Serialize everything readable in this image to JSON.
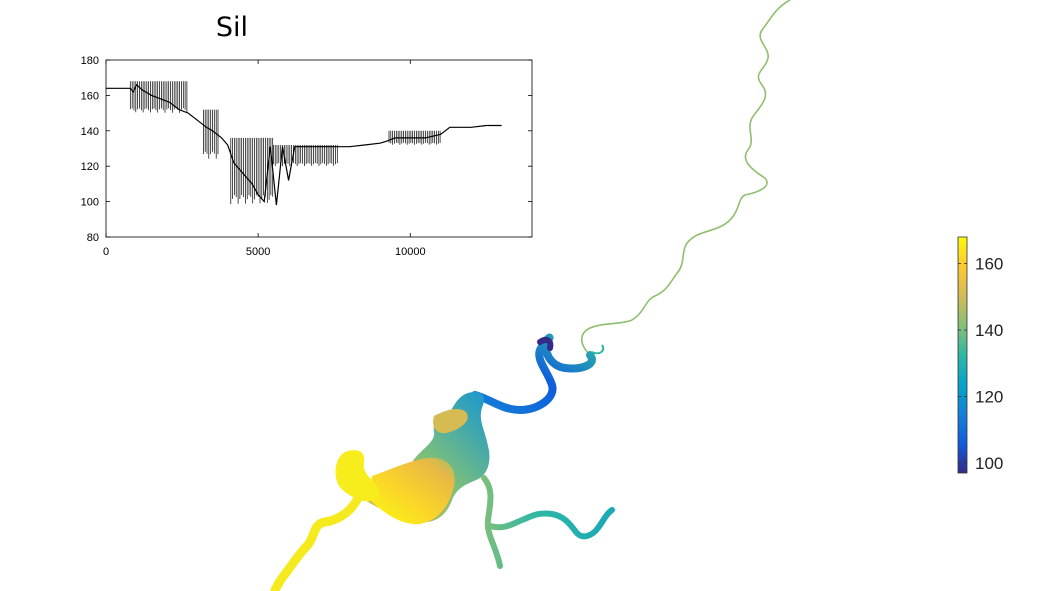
{
  "title": "Sil",
  "colors": {
    "profile_line": "#000000",
    "axes": "#000000",
    "colormap": [
      "#352a87",
      "#0f5cdd",
      "#1481d6",
      "#06a4ca",
      "#2eb7a4",
      "#87bf77",
      "#d1bb59",
      "#fec832",
      "#f9fb0e"
    ]
  },
  "chart_data": [
    {
      "type": "line",
      "title": "Sil",
      "xlabel": "",
      "ylabel": "",
      "xlim": [
        0,
        14000
      ],
      "ylim": [
        80,
        180
      ],
      "x_ticks": [
        0,
        5000,
        10000
      ],
      "x_tick_labels": [
        "0",
        "5000",
        "10000"
      ],
      "y_ticks": [
        80,
        100,
        120,
        140,
        160,
        180
      ],
      "y_tick_labels": [
        "80",
        "100",
        "120",
        "140",
        "160",
        "180"
      ],
      "grid": false,
      "series": [
        {
          "x": [
            0,
            400,
            800,
            900,
            1000,
            1200,
            1500,
            1800,
            2100,
            2400,
            2700,
            3000,
            3300,
            3500,
            3800,
            4000,
            4200,
            4500,
            4800,
            5000,
            5200,
            5400,
            5600,
            5800,
            6000,
            6200,
            6500,
            7000,
            7500,
            8000,
            8500,
            9000,
            9200,
            9500,
            10000,
            10500,
            11000,
            11300,
            11600,
            12000,
            12500,
            13000
          ],
          "y": [
            164,
            164,
            164,
            162,
            166,
            163,
            160,
            158,
            156,
            152,
            150,
            146,
            142,
            140,
            136,
            132,
            122,
            116,
            110,
            104,
            100,
            131,
            98,
            131,
            112,
            131,
            131,
            131,
            131,
            131,
            132,
            133,
            134,
            136,
            136,
            136,
            138,
            142,
            142,
            142,
            143,
            143
          ]
        }
      ],
      "oscillation_ranges": [
        {
          "x_start": 800,
          "x_end": 2700,
          "y_low": 150,
          "y_high": 168
        },
        {
          "x_start": 3200,
          "x_end": 3700,
          "y_low": 124,
          "y_high": 152
        },
        {
          "x_start": 4100,
          "x_end": 5500,
          "y_low": 98,
          "y_high": 136
        },
        {
          "x_start": 5500,
          "x_end": 7600,
          "y_low": 120,
          "y_high": 132
        },
        {
          "x_start": 9300,
          "x_end": 11000,
          "y_low": 132,
          "y_high": 140
        }
      ]
    },
    {
      "type": "heatmap",
      "title": "",
      "colorbar": {
        "range": [
          97,
          168
        ],
        "ticks": [
          100,
          120,
          140,
          160
        ],
        "tick_labels": [
          "100",
          "120",
          "140",
          "160"
        ],
        "placement": "right"
      }
    }
  ]
}
